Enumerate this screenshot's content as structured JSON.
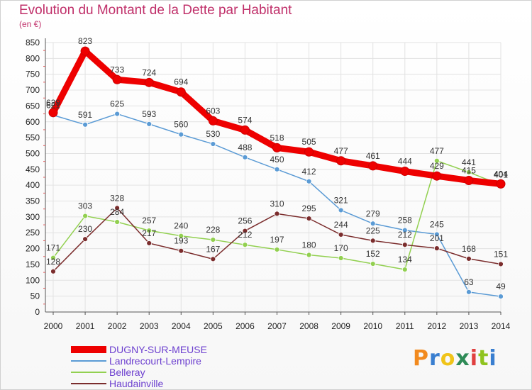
{
  "header": {
    "title": "Evolution du Montant de la Dette par Habitant",
    "unit": "(en €)"
  },
  "logo": {
    "text": "Proxiti",
    "letter_colors": [
      "#f28a1e",
      "#3a7fd0",
      "#f0c419",
      "#2e8b57",
      "#e04040",
      "#8fc31f",
      "#3a7fd0"
    ]
  },
  "chart_data": {
    "type": "line",
    "x": [
      "2000",
      "2001",
      "2002",
      "2003",
      "2004",
      "2005",
      "2006",
      "2007",
      "2008",
      "2009",
      "2010",
      "2011",
      "2012",
      "2013",
      "2014"
    ],
    "ylim": [
      0,
      850
    ],
    "yticks": [
      0,
      50,
      100,
      150,
      200,
      250,
      300,
      350,
      400,
      450,
      500,
      550,
      600,
      650,
      700,
      750,
      800,
      850
    ],
    "grid": true,
    "series": [
      {
        "name": "DUGNY-SUR-MEUSE",
        "color": "#ee0000",
        "values": [
          629,
          823,
          733,
          724,
          694,
          603,
          574,
          518,
          505,
          477,
          461,
          444,
          429,
          415,
          404
        ],
        "labels": [
          "629",
          "823",
          "733",
          "724",
          "694",
          "603",
          "574",
          "518",
          "505",
          "477",
          "461",
          "444",
          "429",
          "415",
          "404"
        ]
      },
      {
        "name": "Landrecourt-Lempire",
        "color": "#5b9bd5",
        "values": [
          621,
          591,
          625,
          593,
          560,
          530,
          488,
          450,
          412,
          321,
          279,
          258,
          245,
          63,
          49
        ],
        "labels": [
          "621",
          "591",
          "625",
          "593",
          "560",
          "530",
          "488",
          "450",
          "412",
          "321",
          "279",
          "258",
          "245",
          "63",
          "49"
        ]
      },
      {
        "name": "Belleray",
        "color": "#92d050",
        "values": [
          171,
          303,
          284,
          257,
          240,
          228,
          212,
          197,
          180,
          170,
          152,
          134,
          477,
          441,
          401
        ],
        "labels": [
          "171",
          "303",
          "284",
          "257",
          "240",
          "228",
          "212",
          "197",
          "180",
          "170",
          "152",
          "134",
          "477",
          "441",
          "401"
        ]
      },
      {
        "name": "Haudainville",
        "color": "#7b2d2d",
        "values": [
          128,
          230,
          328,
          217,
          193,
          167,
          256,
          310,
          295,
          244,
          225,
          212,
          201,
          168,
          151
        ],
        "labels": [
          "128",
          "230",
          "328",
          "217",
          "193",
          "167",
          "256",
          "310",
          "295",
          "244",
          "225",
          "212",
          "201",
          "168",
          "151"
        ]
      }
    ]
  }
}
